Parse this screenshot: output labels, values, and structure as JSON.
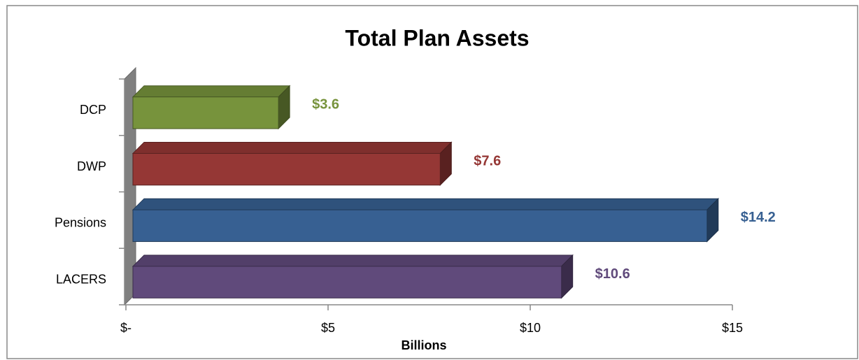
{
  "chart_data": {
    "type": "bar3d",
    "orientation": "horizontal",
    "title": "Total Plan Assets",
    "categories": [
      "DCP",
      "DWP",
      "Pensions",
      "LACERS"
    ],
    "values": [
      3.6,
      7.6,
      14.2,
      10.6
    ],
    "value_labels": [
      "$3.6",
      "$7.6",
      "$14.2",
      "$10.6"
    ],
    "colors": [
      "#77933c",
      "#953735",
      "#376092",
      "#604a7b"
    ],
    "xlabel": "Billions",
    "xlim": [
      0,
      15
    ],
    "xticks": [
      {
        "value": 0,
        "label": "$-"
      },
      {
        "value": 5,
        "label": "$5"
      },
      {
        "value": 10,
        "label": "$10"
      },
      {
        "value": 15,
        "label": "$15"
      }
    ]
  }
}
